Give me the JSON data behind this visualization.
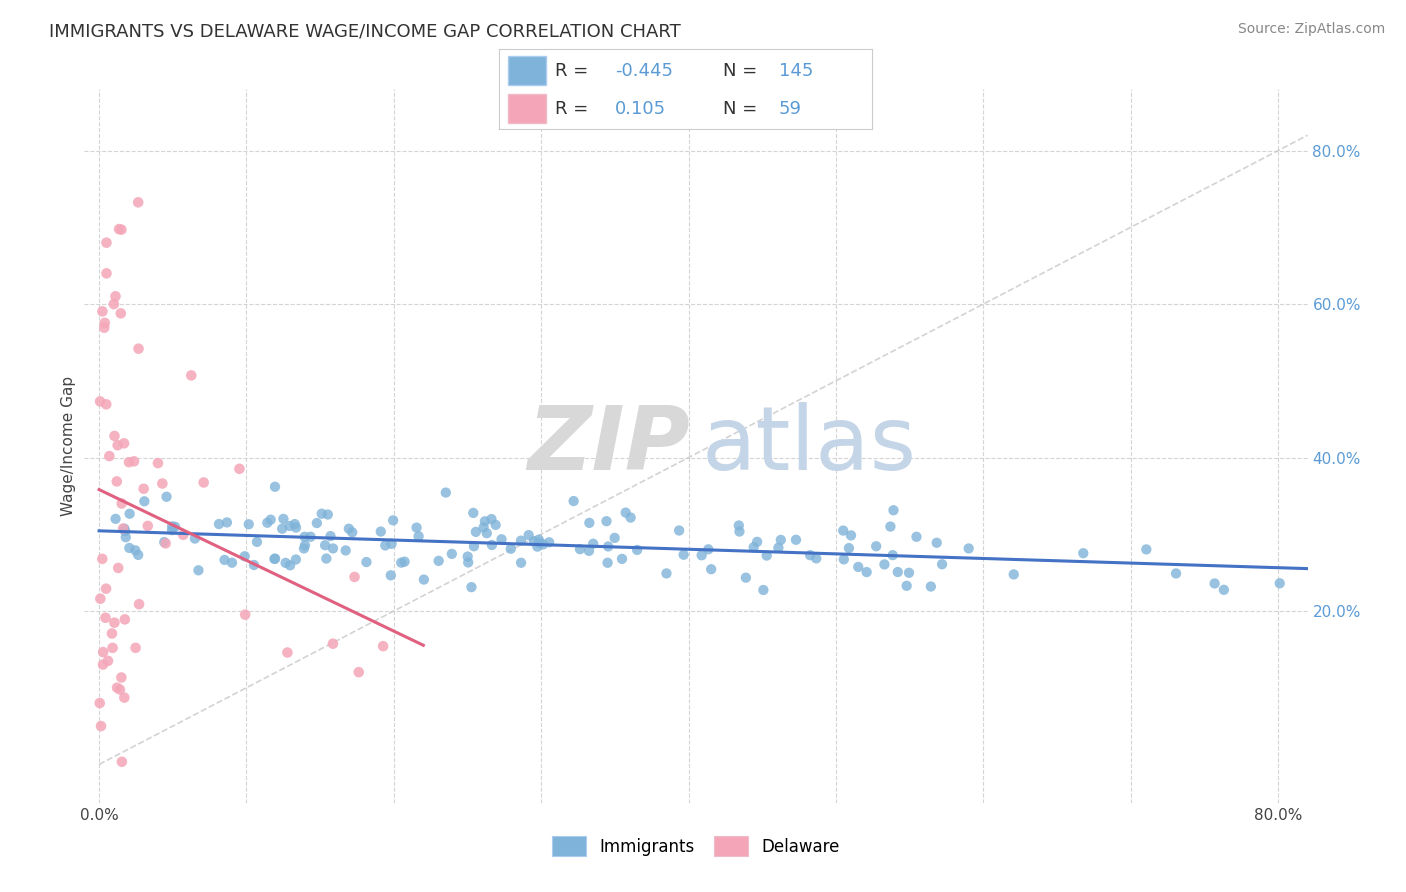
{
  "title": "IMMIGRANTS VS DELAWARE WAGE/INCOME GAP CORRELATION CHART",
  "source": "Source: ZipAtlas.com",
  "ylabel": "Wage/Income Gap",
  "xlim": [
    -0.01,
    0.82
  ],
  "ylim": [
    -0.05,
    0.88
  ],
  "x_ticks": [
    0.0,
    0.1,
    0.2,
    0.3,
    0.4,
    0.5,
    0.6,
    0.7,
    0.8
  ],
  "x_tick_labels": [
    "0.0%",
    "",
    "",
    "",
    "",
    "",
    "",
    "",
    "80.0%"
  ],
  "y_tick_vals_right": [
    0.2,
    0.4,
    0.6,
    0.8
  ],
  "y_tick_labels_right": [
    "20.0%",
    "40.0%",
    "60.0%",
    "80.0%"
  ],
  "immigrants_color": "#7FB3D9",
  "delaware_color": "#F4A6B8",
  "immigrants_line_color": "#4472C4",
  "delaware_line_color": "#E06080",
  "diagonal_color": "#C8C8C8",
  "R_immigrants": -0.445,
  "N_immigrants": 145,
  "R_delaware": 0.105,
  "N_delaware": 59,
  "legend_label_immigrants": "Immigrants",
  "legend_label_delaware": "Delaware",
  "background_color": "#ffffff",
  "grid_color": "#d0d0d0",
  "title_fontsize": 13,
  "source_fontsize": 10,
  "tick_fontsize": 11,
  "ylabel_fontsize": 11
}
